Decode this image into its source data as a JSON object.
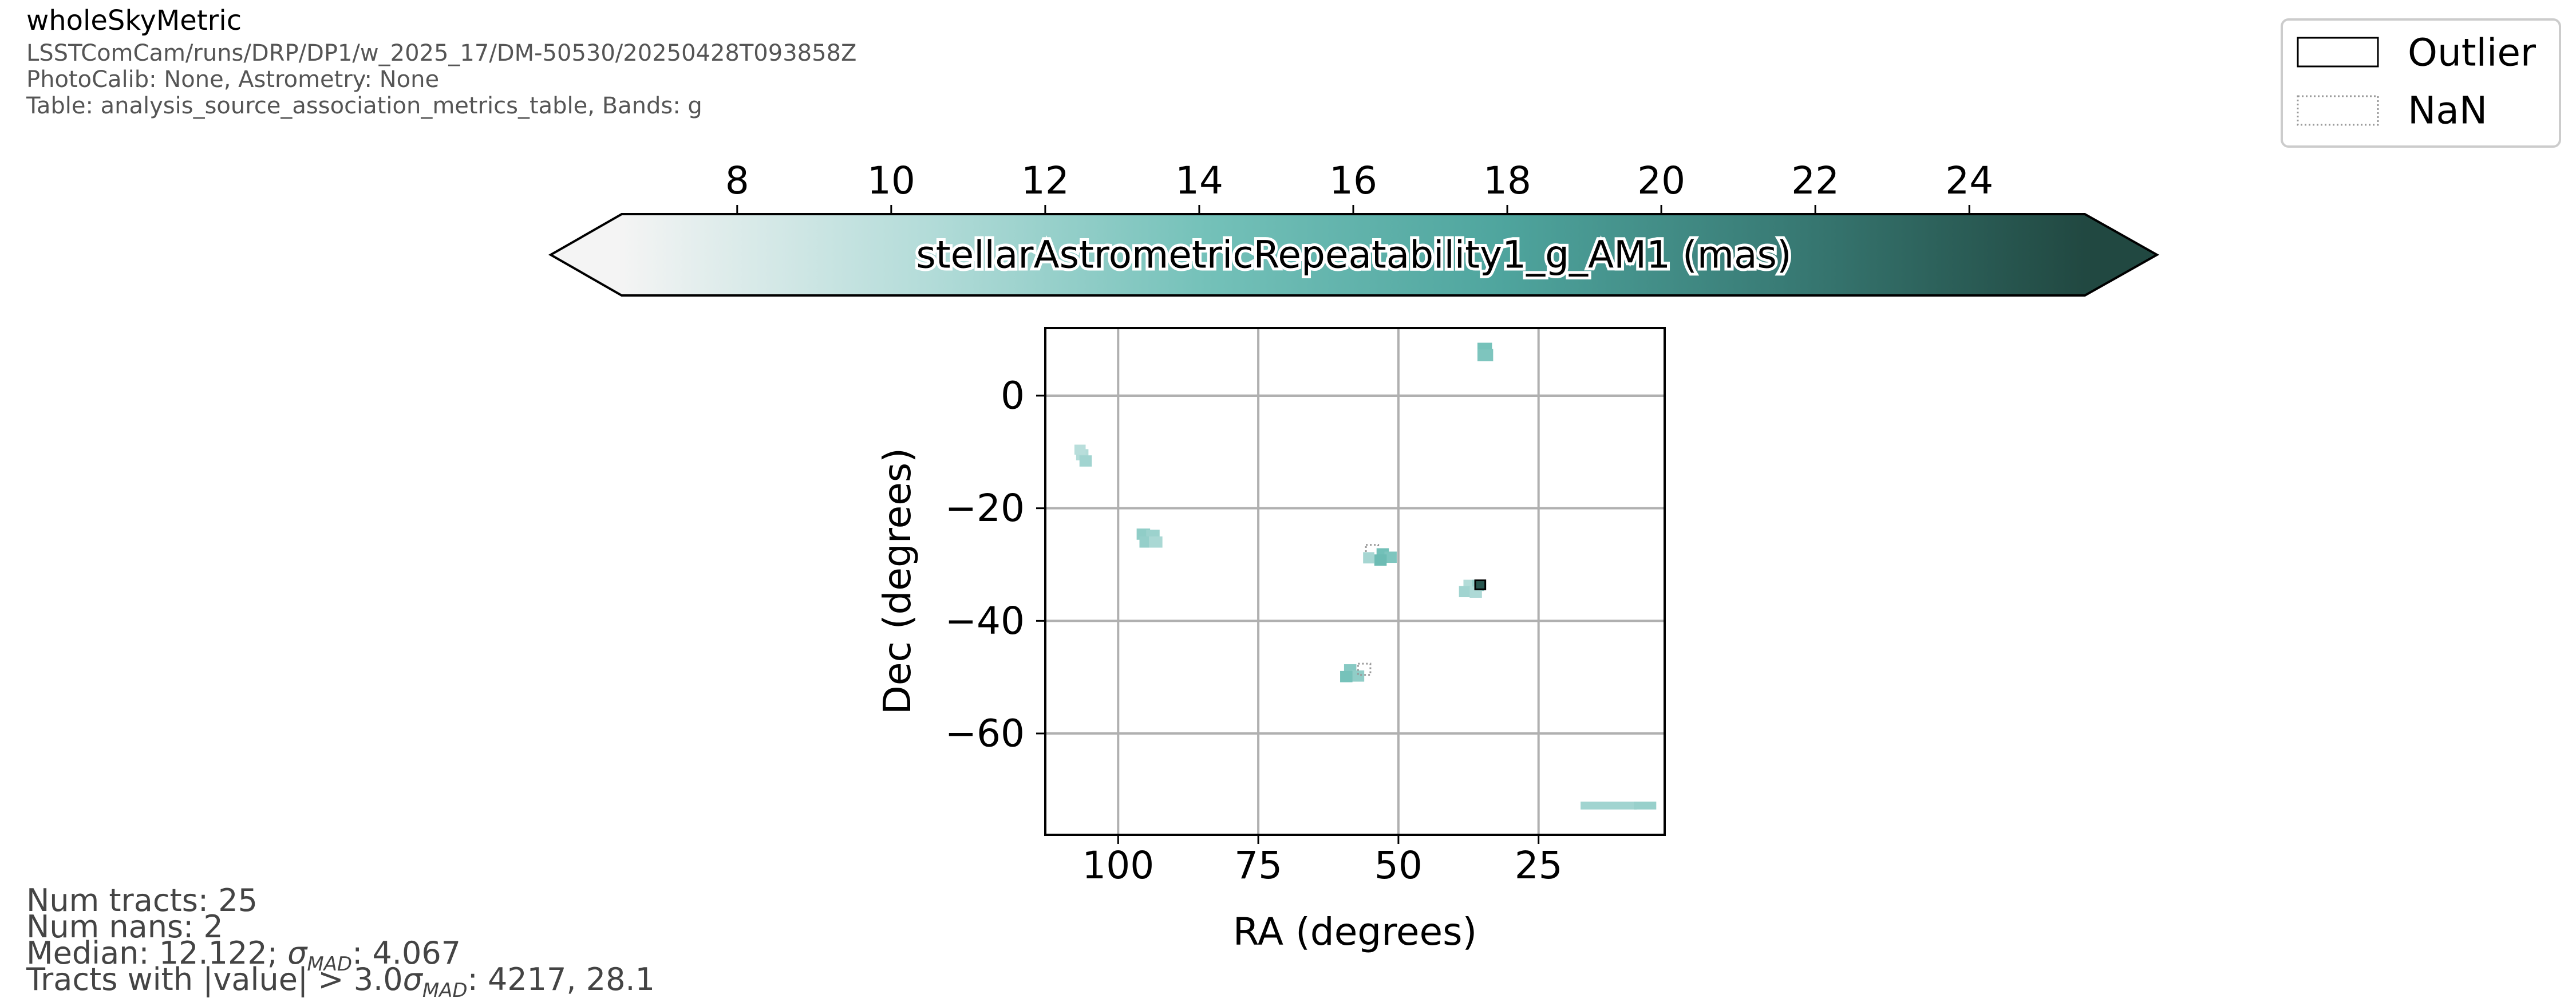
{
  "header": {
    "title": "wholeSkyMetric",
    "run": "LSSTComCam/runs/DRP/DP1/w_2025_17/DM-50530/20250428T093858Z",
    "calib": "PhotoCalib: None, Astrometry: None",
    "table": "Table: analysis_source_association_metrics_table, Bands: g"
  },
  "stats": {
    "num_tracts": "Num tracts: 25",
    "num_nans": "Num nans: 2",
    "median_prefix": "Median: 12.122; ",
    "sigma_symbol": "σ",
    "mad_sub": "MAD",
    "median_suffix": ": 4.067",
    "outlier_prefix": "Tracts with |value| > 3.0",
    "outlier_suffix": ": 4217, 28.1"
  },
  "legend": {
    "items": [
      {
        "label": "Outlier",
        "style": "solid"
      },
      {
        "label": "NaN",
        "style": "dotted"
      }
    ]
  },
  "colors": {
    "cmap": [
      "#f4f4f4",
      "#b6ddda",
      "#74c1b9",
      "#4fa59e",
      "#387a74",
      "#214841"
    ],
    "grid": "#b0b0b0",
    "nan_border": "#999999",
    "outlier_border": "#000000"
  },
  "chart_data": {
    "type": "scatter",
    "title": "",
    "colorbar": {
      "label": "stellarAstrometricRepeatability1_g_AM1 (mas)",
      "range": [
        6.5,
        25.5
      ],
      "ticks": [
        8,
        10,
        12,
        14,
        16,
        18,
        20,
        22,
        24
      ],
      "extend": "both"
    },
    "xlabel": "RA (degrees)",
    "ylabel": "Dec (degrees)",
    "xlim": [
      113,
      2.5
    ],
    "ylim": [
      -78,
      12
    ],
    "xticks": [
      100,
      75,
      50,
      25
    ],
    "yticks": [
      0,
      -20,
      -40,
      -60
    ],
    "grid": true,
    "legend_position": "top-right",
    "tracts": [
      {
        "ra": 106.4,
        "dec": -10.5,
        "w": 2.2,
        "h": 2.0,
        "value": 10.5
      },
      {
        "ra": 105.8,
        "dec": -11.6,
        "w": 2.2,
        "h": 2.0,
        "value": 11.5
      },
      {
        "ra": 106.8,
        "dec": -9.6,
        "w": 2.0,
        "h": 1.8,
        "value": 10.2
      },
      {
        "ra": 95.5,
        "dec": -24.6,
        "w": 2.4,
        "h": 2.0,
        "value": 12.5
      },
      {
        "ra": 93.8,
        "dec": -24.8,
        "w": 2.4,
        "h": 2.0,
        "value": 11.8
      },
      {
        "ra": 95.0,
        "dec": -26.0,
        "w": 2.4,
        "h": 2.0,
        "value": 12.2
      },
      {
        "ra": 93.3,
        "dec": -26.0,
        "w": 2.4,
        "h": 2.0,
        "value": 11.0
      },
      {
        "ra": 54.7,
        "dec": -27.5,
        "w": 2.2,
        "h": 2.0,
        "value": null
      },
      {
        "ra": 52.8,
        "dec": -28.1,
        "w": 2.2,
        "h": 2.0,
        "value": 14.3
      },
      {
        "ra": 51.4,
        "dec": -28.7,
        "w": 2.2,
        "h": 2.0,
        "value": 13.5
      },
      {
        "ra": 53.2,
        "dec": -29.2,
        "w": 2.2,
        "h": 2.0,
        "value": 14.8
      },
      {
        "ra": 55.3,
        "dec": -28.8,
        "w": 2.0,
        "h": 2.0,
        "value": 11.2
      },
      {
        "ra": 37.3,
        "dec": -33.7,
        "w": 2.2,
        "h": 2.0,
        "value": 10.5
      },
      {
        "ra": 35.8,
        "dec": -33.7,
        "w": 2.2,
        "h": 2.0,
        "value": 12.0
      },
      {
        "ra": 38.1,
        "dec": -34.8,
        "w": 2.2,
        "h": 2.0,
        "value": 11.5
      },
      {
        "ra": 36.2,
        "dec": -34.9,
        "w": 2.2,
        "h": 2.0,
        "value": 10.8
      },
      {
        "ra": 35.4,
        "dec": -33.6,
        "w": 1.8,
        "h": 1.6,
        "value": 24.5,
        "outlier": true
      },
      {
        "ra": 58.6,
        "dec": -48.7,
        "w": 2.2,
        "h": 2.0,
        "value": 13.0
      },
      {
        "ra": 57.2,
        "dec": -49.8,
        "w": 2.2,
        "h": 2.0,
        "value": 12.5
      },
      {
        "ra": 59.3,
        "dec": -49.9,
        "w": 2.2,
        "h": 2.0,
        "value": 14.0
      },
      {
        "ra": 56.1,
        "dec": -48.6,
        "w": 2.2,
        "h": 2.0,
        "value": null
      },
      {
        "ra": 34.5,
        "dec": 7.2,
        "w": 2.8,
        "h": 2.2,
        "value": 13.5
      },
      {
        "ra": 34.6,
        "dec": 8.8,
        "w": 2.6,
        "h": 1.2,
        "value": 14.0
      },
      {
        "ra": 12.5,
        "dec": -72.8,
        "w": 10.0,
        "h": 1.4,
        "value": 11.5
      },
      {
        "ra": 6.0,
        "dec": -72.8,
        "w": 4.0,
        "h": 1.4,
        "value": 12.0
      }
    ]
  }
}
